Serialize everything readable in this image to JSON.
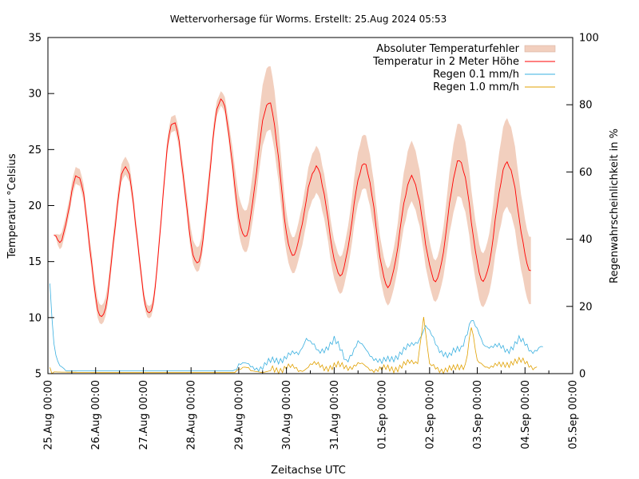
{
  "chart_data": {
    "type": "line",
    "title": "Wettervorhersage für Worms. Erstellt: 25.Aug 2024 05:53",
    "xlabel": "Zeitachse UTC",
    "ylabel": "Temperatur °Celsius",
    "y2label": "Regenwahrscheinlichkeit in %",
    "xlim": [
      "2024-08-25 00:00",
      "2024-09-05 00:00"
    ],
    "ylim": [
      5,
      35
    ],
    "y2lim": [
      0,
      100
    ],
    "xticks": [
      "25.Aug 00:00",
      "26.Aug 00:00",
      "27.Aug 00:00",
      "28.Aug 00:00",
      "29.Aug 00:00",
      "30.Aug 00:00",
      "31.Aug 00:00",
      "01.Sep 00:00",
      "02.Sep 00:00",
      "03.Sep 00:00",
      "04.Sep 00:00",
      "05.Sep 00:00"
    ],
    "yticks": [
      5,
      10,
      15,
      20,
      25,
      30,
      35
    ],
    "y2ticks": [
      0,
      20,
      40,
      60,
      80,
      100
    ],
    "grid": false,
    "legend_position": "top-right",
    "colors": {
      "band": "#f2cfbe",
      "temperature": "#ff0000",
      "rain01": "#3ab0e0",
      "rain10": "#e0a000"
    },
    "series_names": {
      "band": "Absoluter Temperaturfehler",
      "temperature": "Temperatur in 2 Meter Höhe",
      "rain01": "Regen 0.1 mm/h",
      "rain10": "Regen 1.0 mm/h"
    },
    "temperature_extrema": [
      [
        "2024-08-25 03:00",
        17.3,
        17.3,
        17.3
      ],
      [
        "2024-08-25 06:00",
        16.8,
        16.2,
        17.5
      ],
      [
        "2024-08-25 15:00",
        22.7,
        22.0,
        23.5
      ],
      [
        "2024-08-26 03:00",
        10.0,
        9.3,
        11.0
      ],
      [
        "2024-08-26 15:00",
        23.5,
        22.8,
        24.4
      ],
      [
        "2024-08-27 03:00",
        10.3,
        9.8,
        10.9
      ],
      [
        "2024-08-27 15:00",
        27.5,
        26.8,
        28.2
      ],
      [
        "2024-08-28 03:00",
        14.8,
        14.0,
        16.2
      ],
      [
        "2024-08-28 15:00",
        29.5,
        28.9,
        30.2
      ],
      [
        "2024-08-29 03:00",
        17.2,
        15.8,
        19.5
      ],
      [
        "2024-08-29 15:00",
        29.2,
        26.8,
        32.5
      ],
      [
        "2024-08-30 03:00",
        15.6,
        14.0,
        17.2
      ],
      [
        "2024-08-30 15:00",
        23.4,
        21.0,
        25.2
      ],
      [
        "2024-08-31 03:00",
        13.8,
        12.2,
        15.5
      ],
      [
        "2024-08-31 15:00",
        23.7,
        21.5,
        26.3
      ],
      [
        "2024-09-01 03:00",
        12.8,
        11.2,
        14.5
      ],
      [
        "2024-09-01 15:00",
        22.5,
        20.2,
        25.6
      ],
      [
        "2024-09-02 03:00",
        13.3,
        11.5,
        15.2
      ],
      [
        "2024-09-02 15:00",
        24.0,
        20.8,
        27.3
      ],
      [
        "2024-09-03 03:00",
        13.3,
        11.0,
        15.8
      ],
      [
        "2024-09-03 15:00",
        23.8,
        19.8,
        27.7
      ],
      [
        "2024-09-04 03:00",
        14.2,
        11.2,
        17.2
      ]
    ],
    "rain01_points": [
      [
        "2024-08-25 01:00",
        27.0
      ],
      [
        "2024-08-25 03:00",
        9.0
      ],
      [
        "2024-08-25 05:00",
        3.0
      ],
      [
        "2024-08-25 07:00",
        1.0
      ],
      [
        "2024-08-25 10:00",
        0.8
      ],
      [
        "2024-08-26 00:00",
        0.8
      ],
      [
        "2024-08-27 00:00",
        0.8
      ],
      [
        "2024-08-28 00:00",
        0.8
      ],
      [
        "2024-08-28 21:00",
        0.8
      ],
      [
        "2024-08-29 00:00",
        3.0
      ],
      [
        "2024-08-29 06:00",
        2.0
      ],
      [
        "2024-08-29 12:00",
        2.0
      ],
      [
        "2024-08-29 18:00",
        4.0
      ],
      [
        "2024-08-30 00:00",
        5.0
      ],
      [
        "2024-08-30 06:00",
        6.0
      ],
      [
        "2024-08-30 10:00",
        11.0
      ],
      [
        "2024-08-30 16:00",
        6.0
      ],
      [
        "2024-08-31 00:00",
        10.0
      ],
      [
        "2024-08-31 06:00",
        4.0
      ],
      [
        "2024-08-31 12:00",
        9.0
      ],
      [
        "2024-08-31 18:00",
        6.0
      ],
      [
        "2024-09-01 00:00",
        3.0
      ],
      [
        "2024-09-01 06:00",
        5.0
      ],
      [
        "2024-09-01 12:00",
        7.0
      ],
      [
        "2024-09-01 18:00",
        10.0
      ],
      [
        "2024-09-01 22:00",
        14.0
      ],
      [
        "2024-09-02 04:00",
        8.0
      ],
      [
        "2024-09-02 10:00",
        5.0
      ],
      [
        "2024-09-02 16:00",
        8.0
      ],
      [
        "2024-09-02 21:00",
        16.0
      ],
      [
        "2024-09-03 03:00",
        9.0
      ],
      [
        "2024-09-03 09:00",
        8.0
      ],
      [
        "2024-09-03 15:00",
        7.0
      ],
      [
        "2024-09-03 21:00",
        10.0
      ],
      [
        "2024-09-04 03:00",
        7.0
      ],
      [
        "2024-09-04 09:00",
        8.0
      ]
    ],
    "rain10_points": [
      [
        "2024-08-25 01:00",
        2.0
      ],
      [
        "2024-08-25 03:00",
        0.5
      ],
      [
        "2024-08-26 00:00",
        0.3
      ],
      [
        "2024-08-28 22:00",
        0.3
      ],
      [
        "2024-08-29 00:00",
        1.5
      ],
      [
        "2024-08-29 12:00",
        0.3
      ],
      [
        "2024-08-30 00:00",
        2.0
      ],
      [
        "2024-08-30 06:00",
        1.0
      ],
      [
        "2024-08-30 12:00",
        2.5
      ],
      [
        "2024-08-31 00:00",
        2.0
      ],
      [
        "2024-08-31 12:00",
        2.5
      ],
      [
        "2024-09-01 00:00",
        1.0
      ],
      [
        "2024-09-01 12:00",
        2.5
      ],
      [
        "2024-09-01 18:00",
        4.0
      ],
      [
        "2024-09-01 21:00",
        17.0
      ],
      [
        "2024-09-02 00:00",
        2.0
      ],
      [
        "2024-09-02 12:00",
        1.0
      ],
      [
        "2024-09-02 18:00",
        3.0
      ],
      [
        "2024-09-02 21:00",
        14.0
      ],
      [
        "2024-09-03 00:00",
        3.0
      ],
      [
        "2024-09-03 12:00",
        2.0
      ],
      [
        "2024-09-03 18:00",
        4.0
      ],
      [
        "2024-09-04 00:00",
        3.0
      ],
      [
        "2024-09-04 06:00",
        2.0
      ]
    ]
  }
}
